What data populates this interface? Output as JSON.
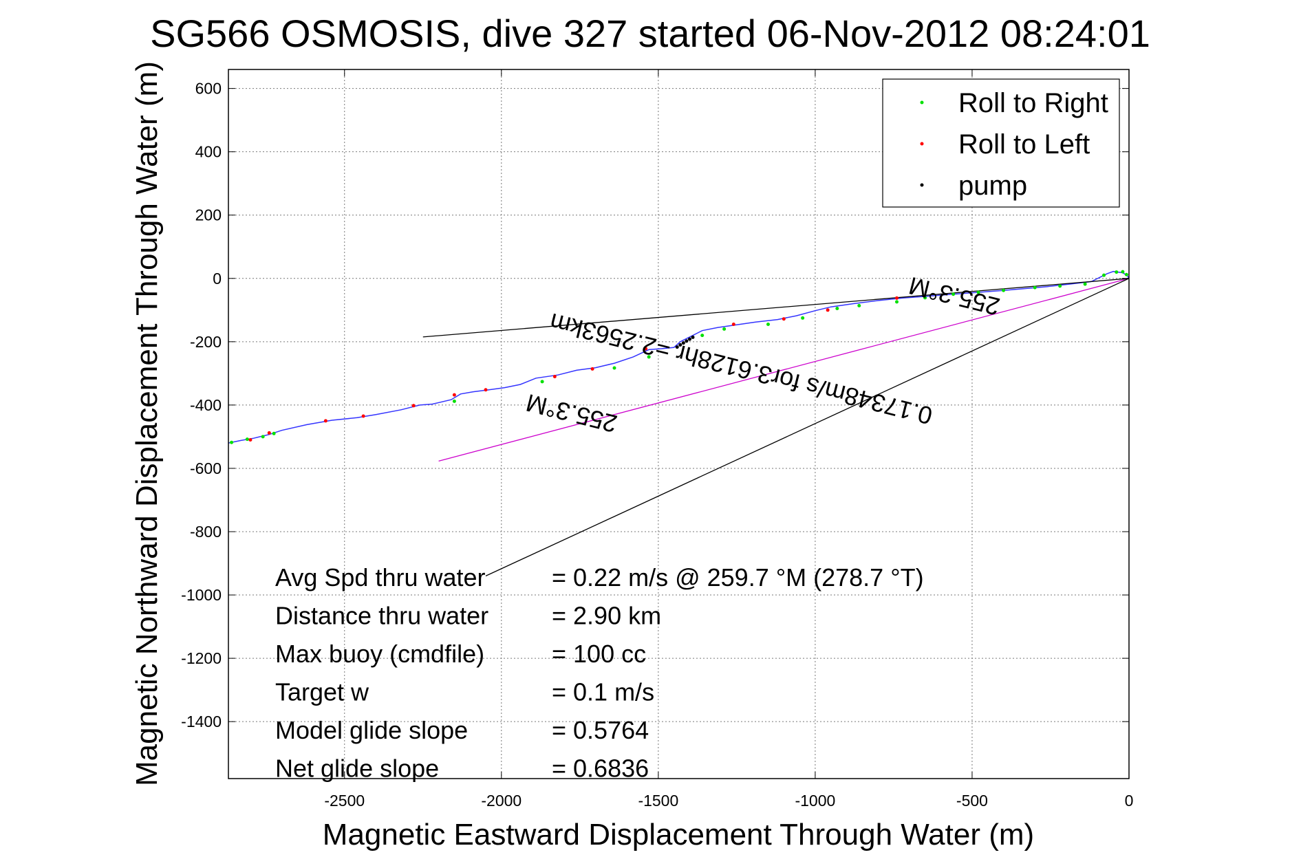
{
  "chart_data": {
    "type": "line",
    "title": "SG566 OSMOSIS, dive 327 started 06-Nov-2012 08:24:01",
    "xlabel": "Magnetic Eastward Displacement Through Water (m)",
    "ylabel": "Magnetic Northward Displacement Through Water (m)",
    "xlim": [
      -2870,
      0
    ],
    "ylim": [
      -1580,
      660
    ],
    "xticks": [
      -2500,
      -2000,
      -1500,
      -1000,
      -500,
      0
    ],
    "yticks": [
      600,
      400,
      200,
      0,
      -200,
      -400,
      -600,
      -800,
      -1000,
      -1200,
      -1400
    ],
    "grid": true,
    "legend": {
      "placement": "top-right",
      "entries": [
        {
          "label": "Roll to Right",
          "color": "#00e000"
        },
        {
          "label": "Roll to Left",
          "color": "#ff0000"
        },
        {
          "label": "pump",
          "color": "#000000"
        }
      ]
    },
    "series": [
      {
        "name": "",
        "color": "#3333ff",
        "x": [
          -2870,
          -2830,
          -2790,
          -2740,
          -2700,
          -2620,
          -2540,
          -2460,
          -2400,
          -2320,
          -2260,
          -2220,
          -2160,
          -2130,
          -2090,
          -2040,
          -1990,
          -1940,
          -1890,
          -1820,
          -1760,
          -1700,
          -1640,
          -1580,
          -1530,
          -1490,
          -1450,
          -1430,
          -1400,
          -1360,
          -1310,
          -1260,
          -1190,
          -1120,
          -1060,
          -1000,
          -950,
          -880,
          -800,
          -720,
          -640,
          -560,
          -480,
          -400,
          -330,
          -260,
          -190,
          -120,
          -70,
          -50,
          -20,
          -5,
          0
        ],
        "y": [
          -520,
          -512,
          -505,
          -493,
          -480,
          -462,
          -448,
          -440,
          -430,
          -415,
          -400,
          -397,
          -383,
          -365,
          -358,
          -352,
          -345,
          -335,
          -315,
          -305,
          -290,
          -282,
          -268,
          -248,
          -225,
          -222,
          -218,
          -200,
          -185,
          -165,
          -155,
          -148,
          -138,
          -130,
          -118,
          -102,
          -90,
          -80,
          -70,
          -62,
          -56,
          -50,
          -44,
          -38,
          -32,
          -26,
          -18,
          -10,
          15,
          22,
          18,
          8,
          0
        ]
      },
      {
        "name": "",
        "color": "#cc00cc",
        "x": [
          -2200,
          0
        ],
        "y": [
          -577,
          0
        ]
      },
      {
        "name": "",
        "color": "#000000",
        "x": [
          -2250,
          0
        ],
        "y": [
          -185,
          0
        ]
      },
      {
        "name": "",
        "color": "#000000",
        "x": [
          -2050,
          0
        ],
        "y": [
          -940,
          0
        ]
      }
    ],
    "markers": {
      "roll_right": {
        "color": "#00e000",
        "x": [
          -2860,
          -2810,
          -2760,
          -2725,
          -2150,
          -1870,
          -1640,
          -1530,
          -1360,
          -1290,
          -1150,
          -1040,
          -930,
          -860,
          -740,
          -650,
          -560,
          -480,
          -400,
          -300,
          -220,
          -140,
          -80,
          -40,
          -20,
          -8
        ],
        "y": [
          -518,
          -508,
          -500,
          -490,
          -388,
          -326,
          -283,
          -248,
          -180,
          -160,
          -145,
          -125,
          -95,
          -86,
          -74,
          -61,
          -50,
          -44,
          -38,
          -29,
          -24,
          -18,
          10,
          20,
          21,
          12
        ]
      },
      "roll_left": {
        "color": "#ff0000",
        "x": [
          -2800,
          -2740,
          -2560,
          -2440,
          -2280,
          -2150,
          -2050,
          -1830,
          -1710,
          -1540,
          -1260,
          -1100,
          -960,
          -740
        ],
        "y": [
          -510,
          -488,
          -450,
          -435,
          -402,
          -368,
          -352,
          -310,
          -286,
          -222,
          -145,
          -128,
          -100,
          -62
        ]
      },
      "pump": {
        "color": "#000000",
        "x": [
          -1440,
          -1430,
          -1420,
          -1410,
          -1400,
          -1390
        ],
        "y": [
          -217,
          -210,
          -204,
          -198,
          -192,
          -186
        ]
      }
    },
    "annotations": [
      {
        "text": "255.3°M",
        "x": -1770,
        "y": -400,
        "rotation": 194
      },
      {
        "text": "0.17348m/s for3.6128hr =2.2563km",
        "x": -1230,
        "y": -260,
        "rotation": 194
      },
      {
        "text": "255.3°M",
        "x": -550,
        "y": -30,
        "rotation": 194
      }
    ],
    "stats": [
      {
        "label": "Avg Spd thru water",
        "value": "=  0.22 m/s @ 259.7 °M (278.7 °T)"
      },
      {
        "label": "Distance thru water",
        "value": "=  2.90 km"
      },
      {
        "label": "Max buoy (cmdfile)",
        "value": "= 100 cc"
      },
      {
        "label": "Target w",
        "value": "= 0.1 m/s"
      },
      {
        "label": "Model glide slope",
        "value": "= 0.5764"
      },
      {
        "label": "Net glide slope",
        "value": "= 0.6836"
      }
    ]
  }
}
